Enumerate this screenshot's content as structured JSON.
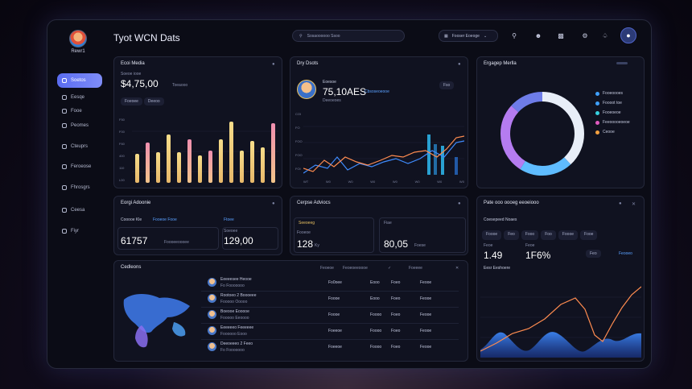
{
  "app": {
    "title": "Tyot WCN Dats"
  },
  "user": {
    "name": "Rewr1"
  },
  "sidebar": {
    "items": [
      {
        "label": "Soetos",
        "icon": "home-icon"
      },
      {
        "label": "Eesqe",
        "icon": "chart-icon"
      },
      {
        "label": "Fooe",
        "icon": "folder-icon"
      },
      {
        "label": "Peomes",
        "icon": "users-icon"
      },
      {
        "label": "Cteuprs",
        "icon": "layers-icon"
      },
      {
        "label": "Feroeose",
        "icon": "calendar-icon"
      },
      {
        "label": "Fhrosgrs",
        "icon": "message-icon"
      },
      {
        "label": "Ceesa",
        "icon": "settings-icon"
      },
      {
        "label": "Fiyr",
        "icon": "help-icon"
      }
    ]
  },
  "header": {
    "search_placeholder": "Sosaoooooo   Ssoo",
    "select_label": "Fooser Eoeoge",
    "icons": [
      "search-icon",
      "user-plus-icon",
      "profile-card-icon",
      "bell-icon",
      "profile-icon"
    ]
  },
  "card_metrics": {
    "title": "Ecoi Media",
    "label": "Soeoe iooe",
    "value": "$4,75,00",
    "value_sub": "Toeaooo",
    "pills": [
      "Foeoee",
      "Deeoo"
    ],
    "yticks": [
      "F50",
      "F00",
      "F60",
      "400",
      "110",
      "L00"
    ],
    "accent": "#f2d27a"
  },
  "card_day": {
    "title": "Dry Dsots",
    "person_label": "Eoesoe",
    "value": "75,10AES",
    "value_sub": "Deeoeoes",
    "link": "Cbsoseoeooe",
    "button": "Fso",
    "yticks": [
      "COI",
      "FO",
      "FOO",
      "FOO",
      "FOI"
    ],
    "xticks": [
      "WT",
      "W0",
      "W0",
      "W0",
      "W0",
      "W0",
      "W0",
      "W0"
    ]
  },
  "card_engagement": {
    "title": "Ergagep Merlla",
    "legend": [
      {
        "label": "Fooeoooes",
        "color": "#3fa0ff"
      },
      {
        "label": "Foooot toe",
        "color": "#3fa0ff"
      },
      {
        "label": "Fooeoeoe",
        "color": "#36d1e0"
      },
      {
        "label": "Feeooooeoeoe",
        "color": "#e05ac0"
      },
      {
        "label": "Ceooe",
        "color": "#f4a040"
      }
    ]
  },
  "card_liquid": {
    "title": "Eorgi Adoonie",
    "tabs": [
      "Cooooe Kle",
      "Fooeoe Fooe",
      "Ftoee"
    ],
    "stat1": {
      "value": "61757",
      "label": "Foooeeoooee"
    },
    "stat2": {
      "value": "129,00",
      "label": "Soeoee"
    }
  },
  "card_annual": {
    "title": "Cerpse Adviocs",
    "row_label": "Seeoeeg",
    "row_label2": "Fiae",
    "stat1": {
      "value": "128",
      "label": "Fooeoe",
      "unit": "Ky"
    },
    "stat2": {
      "value": "80,05",
      "label": "Foese"
    }
  },
  "card_platform": {
    "title": "Pate ooo oooeg eeoeiooo",
    "sub_title": "Coesepeed Noaes",
    "tabs": [
      "Foooe",
      "Feo",
      "Fooo",
      "Foo",
      "Foooe",
      "Fooe"
    ],
    "stat1": {
      "value": "1.49",
      "label": "Feoe"
    },
    "stat2": {
      "value": "1F6%",
      "label": "Feoe"
    },
    "button": "Feo",
    "link": "Feooeo",
    "chart_title": "Eesr Eeshoere"
  },
  "card_conditions": {
    "title": "Cedleons",
    "columns": [
      "Feoeoe",
      "Feoeoeeoooe",
      "Foeeee"
    ],
    "rows": [
      {
        "name": "Eeeeesee Heooe",
        "sub": "Fo Fooooooo",
        "c1": "Fo0oee",
        "c2": "Eooo",
        "c3": "Foeo",
        "c4": "Feooe"
      },
      {
        "name": "Rootoeo 2 Boooeee",
        "sub": "Fooooo Ooooo",
        "c1": "Foooe",
        "c2": "Eooo",
        "c3": "Foeo",
        "c4": "Feooe"
      },
      {
        "name": "Boeooe Eooooe",
        "sub": "Fooooo Eeoooo",
        "c1": "Foooe",
        "c2": "Foooo",
        "c3": "Foeo",
        "c4": "Feooe"
      },
      {
        "name": "Eeeeeeo Feeeeee",
        "sub": "Foooooo Eooo",
        "c1": "Foeeoe",
        "c2": "Foooo",
        "c3": "Foeo",
        "c4": "Feooe"
      },
      {
        "name": "Deeoeeeo 2 Feeo",
        "sub": "Fo Fooooooo",
        "c1": "Foeeoe",
        "c2": "Foooo",
        "c3": "Foeo",
        "c4": "Feooe"
      }
    ]
  }
}
